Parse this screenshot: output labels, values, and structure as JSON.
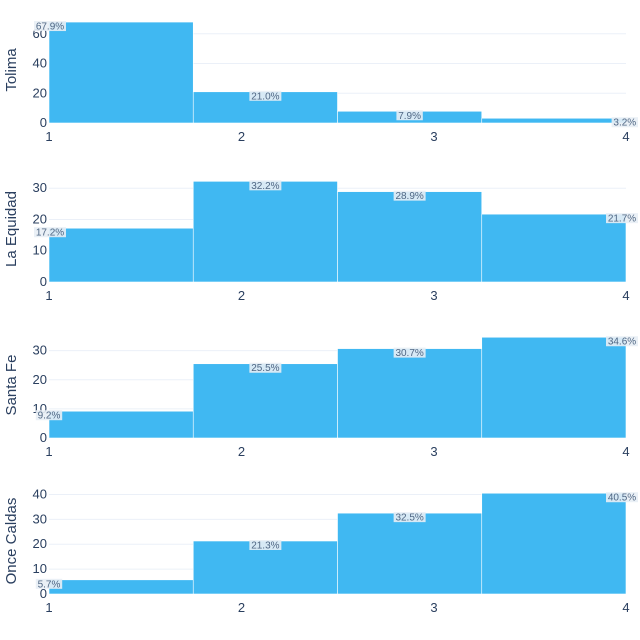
{
  "chart_data": {
    "type": "bar",
    "layout": "stacked-subplots",
    "bar_color": "#40b8f2",
    "label_bg": "#e8eef5",
    "x_ticks": [
      "1",
      "2",
      "3",
      "4"
    ],
    "panels": [
      {
        "name": "Tolima",
        "y_ticks": [
          "0",
          "20",
          "40",
          "60"
        ],
        "y_tick_values": [
          0,
          20,
          40,
          60
        ],
        "ylim": [
          0,
          71.3
        ],
        "values": [
          67.9,
          21.0,
          7.9,
          3.2
        ],
        "labels": [
          "67.9%",
          "21.0%",
          "7.9%",
          "3.2%"
        ]
      },
      {
        "name": "La Equidad",
        "y_ticks": [
          "0",
          "10",
          "20",
          "30"
        ],
        "y_tick_values": [
          0,
          10,
          20,
          30
        ],
        "ylim": [
          0,
          33.9
        ],
        "values": [
          17.2,
          32.2,
          28.9,
          21.7
        ],
        "labels": [
          "17.2%",
          "32.2%",
          "28.9%",
          "21.7%"
        ]
      },
      {
        "name": "Santa Fe",
        "y_ticks": [
          "0",
          "10",
          "20",
          "30"
        ],
        "y_tick_values": [
          0,
          10,
          20,
          30
        ],
        "ylim": [
          0,
          36.4
        ],
        "values": [
          9.2,
          25.5,
          30.7,
          34.6
        ],
        "labels": [
          "9.2%",
          "25.5%",
          "30.7%",
          "34.6%"
        ]
      },
      {
        "name": "Once Caldas",
        "y_ticks": [
          "0",
          "10",
          "20",
          "30",
          "40"
        ],
        "y_tick_values": [
          0,
          10,
          20,
          30,
          40
        ],
        "ylim": [
          0,
          42.6
        ],
        "values": [
          5.7,
          21.3,
          32.5,
          40.5
        ],
        "labels": [
          "5.7%",
          "21.3%",
          "32.5%",
          "40.5%"
        ]
      }
    ]
  }
}
